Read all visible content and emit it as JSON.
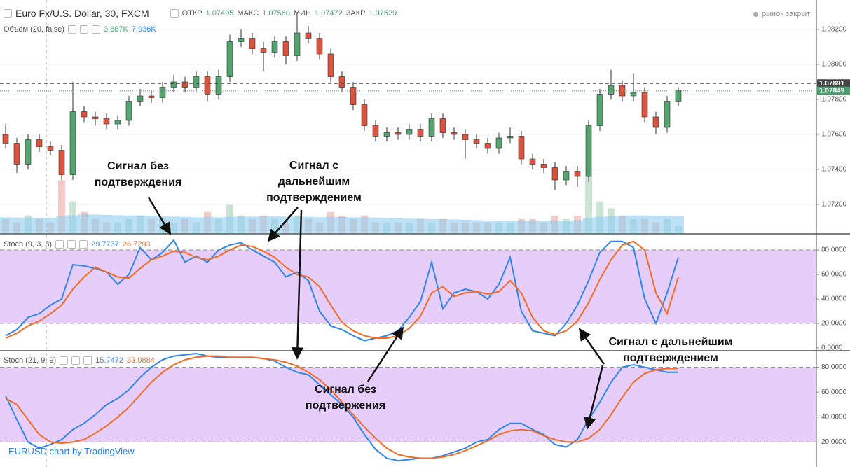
{
  "chart_data": [
    {
      "type": "candlestick",
      "title": "Euro Fx/U.S. Dollar, 30, FXCM",
      "status": "рынок закрыт",
      "ohlc": [
        {
          "label": "ОТКР",
          "value": "1.07495"
        },
        {
          "label": "МАКС",
          "value": "1.07560"
        },
        {
          "label": "МИН",
          "value": "1.07472"
        },
        {
          "label": "ЗАКР",
          "value": "1.07529"
        }
      ],
      "up_color": "#53a46f",
      "down_color": "#d9533f",
      "ylim": [
        1.07036,
        1.08368
      ],
      "yticks": [
        {
          "value": 1.082,
          "label": "1.08200"
        },
        {
          "value": 1.08,
          "label": "1.08000"
        },
        {
          "value": 1.078,
          "label": "1.07800"
        },
        {
          "value": 1.076,
          "label": "1.07600"
        },
        {
          "value": 1.074,
          "label": "1.07400"
        },
        {
          "value": 1.072,
          "label": "1.07200"
        }
      ],
      "grid": true,
      "price_lines": [
        {
          "value": 1.07891,
          "color": "#444444"
        },
        {
          "value": 1.07849,
          "color": "#4a9c6e"
        }
      ],
      "open": [
        1.076,
        1.0755,
        1.0743,
        1.0757,
        1.0753,
        1.0751,
        1.0737,
        1.0773,
        1.077,
        1.0769,
        1.0766,
        1.0768,
        1.0779,
        1.0782,
        1.0781,
        1.0787,
        1.079,
        1.0787,
        1.0793,
        1.0783,
        1.0793,
        1.0813,
        1.0815,
        1.0809,
        1.0807,
        1.0813,
        1.0805,
        1.0818,
        1.0815,
        1.0806,
        1.0793,
        1.0787,
        1.0777,
        1.0765,
        1.0759,
        1.0761,
        1.076,
        1.0763,
        1.0759,
        1.0769,
        1.0761,
        1.076,
        1.0757,
        1.0755,
        1.0752,
        1.0758,
        1.0759,
        1.0746,
        1.0743,
        1.0741,
        1.0734,
        1.0739,
        1.0736,
        1.0765,
        1.0783,
        1.0788,
        1.0782,
        1.0784,
        1.077,
        1.0764,
        1.0779
      ],
      "high": [
        1.0766,
        1.0758,
        1.076,
        1.076,
        1.0756,
        1.0754,
        1.079,
        1.0776,
        1.0773,
        1.0772,
        1.0771,
        1.0782,
        1.0786,
        1.0785,
        1.079,
        1.0794,
        1.0793,
        1.0796,
        1.0796,
        1.0797,
        1.0817,
        1.082,
        1.0818,
        1.0813,
        1.0816,
        1.0816,
        1.083,
        1.0822,
        1.0818,
        1.0809,
        1.0796,
        1.079,
        1.078,
        1.0768,
        1.0764,
        1.0764,
        1.0766,
        1.0766,
        1.0772,
        1.0772,
        1.0764,
        1.0763,
        1.076,
        1.0758,
        1.0761,
        1.0764,
        1.0762,
        1.0749,
        1.0746,
        1.0744,
        1.0742,
        1.0742,
        1.0768,
        1.0786,
        1.0797,
        1.0791,
        1.0795,
        1.0787,
        1.0773,
        1.0782,
        1.0787
      ],
      "low": [
        1.0752,
        1.0738,
        1.074,
        1.075,
        1.0748,
        1.0734,
        1.0734,
        1.0767,
        1.0765,
        1.0763,
        1.0763,
        1.0765,
        1.0776,
        1.0778,
        1.0778,
        1.0784,
        1.0784,
        1.0784,
        1.0779,
        1.078,
        1.079,
        1.081,
        1.0806,
        1.0796,
        1.0804,
        1.08,
        1.0802,
        1.0812,
        1.0803,
        1.079,
        1.0784,
        1.0774,
        1.0762,
        1.0756,
        1.0756,
        1.0757,
        1.0757,
        1.0756,
        1.0756,
        1.0758,
        1.0757,
        1.0746,
        1.0752,
        1.0749,
        1.0749,
        1.0755,
        1.0743,
        1.074,
        1.0738,
        1.0728,
        1.0731,
        1.073,
        1.0733,
        1.0762,
        1.078,
        1.0779,
        1.0779,
        1.0767,
        1.076,
        1.0761,
        1.0776
      ],
      "close": [
        1.0755,
        1.0743,
        1.0757,
        1.0753,
        1.0751,
        1.0737,
        1.0773,
        1.077,
        1.0769,
        1.0766,
        1.0768,
        1.0779,
        1.0782,
        1.0781,
        1.0787,
        1.079,
        1.0787,
        1.0793,
        1.0783,
        1.0793,
        1.0813,
        1.0815,
        1.0809,
        1.0807,
        1.0813,
        1.0805,
        1.0818,
        1.0815,
        1.0806,
        1.0793,
        1.0787,
        1.0777,
        1.0765,
        1.0759,
        1.0761,
        1.076,
        1.0763,
        1.0759,
        1.0769,
        1.0761,
        1.076,
        1.0757,
        1.0755,
        1.0752,
        1.0758,
        1.0759,
        1.0746,
        1.0743,
        1.0741,
        1.0734,
        1.0739,
        1.0736,
        1.0765,
        1.0783,
        1.0788,
        1.0782,
        1.0784,
        1.077,
        1.0764,
        1.0779,
        1.0785
      ],
      "volume": {
        "title": "Объём (20, false)",
        "legend_values": [
          "3.887K",
          "7.936K"
        ],
        "ylim": [
          0,
          66
        ],
        "ma_color": "#8fcdf2",
        "values": [
          4,
          3,
          5,
          4,
          3,
          15,
          9,
          6,
          4,
          3,
          3,
          4,
          5,
          4,
          4,
          3,
          4,
          3,
          6,
          4,
          8,
          5,
          4,
          5,
          4,
          3,
          5,
          4,
          3,
          6,
          5,
          4,
          5,
          3,
          3,
          3,
          3,
          4,
          3,
          4,
          3,
          3,
          3,
          3,
          3,
          3,
          4,
          4,
          3,
          5,
          4,
          5,
          16,
          9,
          7,
          5,
          4,
          4,
          3,
          4,
          2
        ],
        "ma": [
          4.5,
          4.4,
          4.4,
          4.3,
          4.3,
          4.8,
          5.1,
          5.3,
          5.3,
          5.2,
          5.1,
          5.0,
          5.0,
          4.9,
          4.8,
          4.7,
          4.6,
          4.5,
          4.6,
          4.5,
          4.6,
          4.7,
          4.7,
          4.8,
          4.8,
          4.7,
          4.7,
          4.6,
          4.5,
          4.6,
          4.6,
          4.5,
          4.5,
          4.4,
          4.3,
          4.2,
          4.1,
          4.1,
          4.0,
          4.0,
          3.9,
          3.8,
          3.7,
          3.6,
          3.5,
          3.5,
          3.5,
          3.5,
          3.5,
          3.6,
          3.6,
          3.7,
          4.3,
          4.6,
          4.8,
          4.9,
          5.0,
          5.0,
          4.9,
          4.9,
          4.8
        ]
      }
    },
    {
      "type": "line",
      "title": "Stoch (9, 3, 3)",
      "ylim": [
        -1.7,
        92.6
      ],
      "levels": [
        80,
        20
      ],
      "band_color": "#e6cdfa",
      "yticks": [
        {
          "value": 80,
          "label": "80.0000"
        },
        {
          "value": 60,
          "label": "60.0000"
        },
        {
          "value": 40,
          "label": "40.0000"
        },
        {
          "value": 20,
          "label": "20.0000"
        },
        {
          "value": 0,
          "label": "0.0000"
        }
      ],
      "series": [
        {
          "color": "#2f86e8",
          "legend_value": 29.7737,
          "values": [
            10,
            15,
            25,
            28,
            35,
            40,
            68,
            67,
            65,
            62,
            52,
            60,
            82,
            72,
            78,
            88,
            70,
            75,
            70,
            80,
            84,
            86,
            80,
            75,
            70,
            58,
            62,
            55,
            30,
            18,
            15,
            10,
            6,
            8,
            10,
            14,
            25,
            38,
            70,
            32,
            45,
            48,
            46,
            40,
            52,
            74,
            30,
            14,
            12,
            10,
            20,
            35,
            55,
            78,
            87,
            87,
            82,
            40,
            20,
            45,
            74
          ]
        },
        {
          "color": "#f26b21",
          "legend_value": 26.7293,
          "values": [
            8,
            12,
            18,
            22,
            28,
            35,
            48,
            58,
            66,
            62,
            58,
            57,
            65,
            72,
            75,
            79,
            78,
            74,
            72,
            75,
            80,
            84,
            83,
            79,
            74,
            66,
            60,
            58,
            50,
            35,
            21,
            14,
            10,
            8,
            8,
            10,
            16,
            26,
            45,
            50,
            42,
            45,
            46,
            44,
            46,
            55,
            45,
            25,
            14,
            11,
            14,
            22,
            37,
            56,
            72,
            84,
            87,
            80,
            45,
            28,
            58
          ]
        }
      ]
    },
    {
      "type": "line",
      "title": "Stoch (21, 9, 9)",
      "ylim": [
        0,
        92.7
      ],
      "levels": [
        80,
        20
      ],
      "band_color": "#e6cdfa",
      "yticks": [
        {
          "value": 80,
          "label": "80.0000"
        },
        {
          "value": 60,
          "label": "60.0000"
        },
        {
          "value": 40,
          "label": "40.0000"
        },
        {
          "value": 20,
          "label": "20.0000"
        }
      ],
      "series": [
        {
          "color": "#2f86e8",
          "legend_value": 15.7472,
          "values": [
            57,
            38,
            20,
            15,
            18,
            22,
            30,
            35,
            42,
            50,
            55,
            62,
            72,
            80,
            86,
            89,
            90,
            91,
            89,
            88,
            88,
            88,
            88,
            87,
            85,
            80,
            76,
            74,
            66,
            58,
            50,
            40,
            26,
            14,
            7,
            5,
            6,
            7,
            7,
            9,
            12,
            15,
            20,
            22,
            30,
            35,
            35,
            30,
            26,
            18,
            16,
            22,
            38,
            52,
            68,
            80,
            82,
            80,
            78,
            76,
            76
          ]
        },
        {
          "color": "#f26b21",
          "legend_value": 33.0884,
          "values": [
            55,
            50,
            38,
            26,
            20,
            19,
            20,
            22,
            27,
            33,
            40,
            48,
            58,
            68,
            76,
            82,
            86,
            88,
            89,
            89,
            88,
            88,
            88,
            87,
            86,
            84,
            81,
            76,
            70,
            62,
            52,
            42,
            32,
            23,
            15,
            10,
            8,
            7,
            7,
            8,
            10,
            13,
            17,
            21,
            26,
            29,
            30,
            29,
            25,
            22,
            20,
            20,
            23,
            30,
            42,
            56,
            68,
            75,
            78,
            79,
            79
          ]
        }
      ]
    }
  ],
  "annotations": [
    {
      "lines": [
        "Сигнал без",
        "подтверждения"
      ]
    },
    {
      "lines": [
        "Сигнал с",
        "дальнейшим",
        "подтверждением"
      ]
    },
    {
      "lines": [
        "Сигнал без",
        "подтвержения"
      ]
    },
    {
      "lines": [
        "Сигнал с дальнейшим",
        "подтверждением"
      ]
    }
  ],
  "footer": "EURUSD chart by TradingView"
}
